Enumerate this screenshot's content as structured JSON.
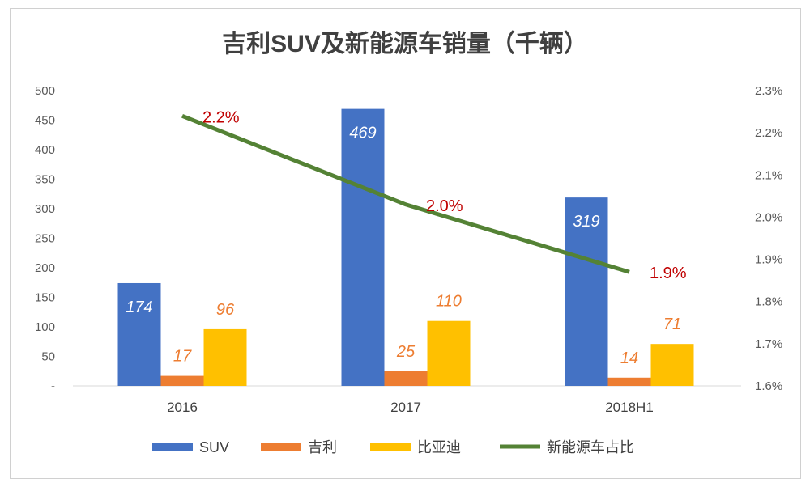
{
  "chart_data": {
    "type": "bar+line",
    "title": "吉利SUV及新能源车销量（千辆）",
    "categories": [
      "2016",
      "2017",
      "2018H1"
    ],
    "series": [
      {
        "name": "SUV",
        "type": "bar",
        "axis": "left",
        "color": "#4472C4",
        "values": [
          174,
          469,
          319
        ],
        "labels": [
          "174",
          "469",
          "319"
        ]
      },
      {
        "name": "吉利",
        "type": "bar",
        "axis": "left",
        "color": "#ED7D31",
        "values": [
          17,
          25,
          14
        ],
        "labels": [
          "17",
          "25",
          "14"
        ]
      },
      {
        "name": "比亚迪",
        "type": "bar",
        "axis": "left",
        "color": "#FFC000",
        "values": [
          96,
          110,
          71
        ],
        "labels": [
          "96",
          "110",
          "71"
        ]
      },
      {
        "name": "新能源车占比",
        "type": "line",
        "axis": "right",
        "color": "#548235",
        "values": [
          2.24,
          2.03,
          1.87
        ],
        "labels": [
          "2.2%",
          "2.0%",
          "1.9%"
        ]
      }
    ],
    "left_axis": {
      "range": [
        0,
        500
      ],
      "ticks": [
        "-",
        "50",
        "100",
        "150",
        "200",
        "250",
        "300",
        "350",
        "400",
        "450",
        "500"
      ]
    },
    "right_axis": {
      "range": [
        1.6,
        2.3
      ],
      "ticks": [
        "1.6%",
        "1.7%",
        "1.8%",
        "1.9%",
        "2.0%",
        "2.1%",
        "2.2%",
        "2.3%"
      ]
    },
    "grid": false,
    "legend": "bottom",
    "colors": {
      "bar_label_orange": "#ED7D31",
      "line_label": "#C00000",
      "bar_label_inside": "#FFFFFF"
    }
  }
}
